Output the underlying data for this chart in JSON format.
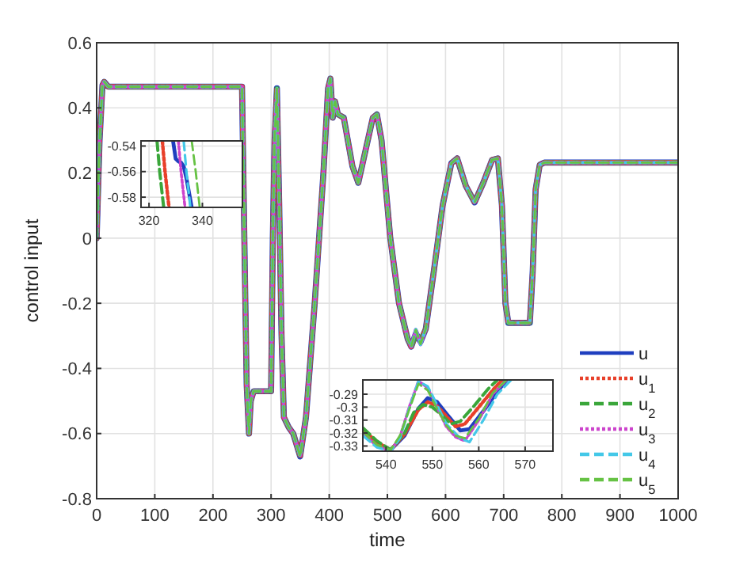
{
  "chart_data": [
    {
      "type": "line",
      "xlabel": "time",
      "ylabel": "control input",
      "xlim": [
        0,
        1000
      ],
      "ylim": [
        -0.8,
        0.6
      ],
      "xticks": [
        0,
        100,
        200,
        300,
        400,
        500,
        600,
        700,
        800,
        900,
        1000
      ],
      "yticks": [
        -0.8,
        -0.6,
        -0.4,
        -0.2,
        0,
        0.2,
        0.4,
        0.6
      ],
      "grid": true,
      "legend": "bottom right",
      "x": [
        0,
        5,
        10,
        13,
        20,
        250,
        254,
        258,
        262,
        265,
        270,
        300,
        303,
        306,
        310,
        314,
        318,
        322,
        330,
        338,
        350,
        360,
        375,
        390,
        398,
        402,
        406,
        410,
        415,
        425,
        440,
        450,
        460,
        475,
        482,
        490,
        505,
        520,
        535,
        541,
        549,
        557,
        566,
        580,
        595,
        610,
        620,
        635,
        650,
        665,
        680,
        690,
        697,
        703,
        708,
        745,
        750,
        755,
        762,
        770,
        1000
      ],
      "series": [
        {
          "name": "u",
          "color": "#1f3fbf",
          "line_style": "solid",
          "values": [
            0,
            0.3,
            0.47,
            0.48,
            0.465,
            0.465,
            0,
            -0.45,
            -0.6,
            -0.5,
            -0.47,
            -0.47,
            0,
            0.3,
            0.46,
            0.1,
            -0.3,
            -0.55,
            -0.58,
            -0.6,
            -0.67,
            -0.55,
            -0.2,
            0.2,
            0.46,
            0.49,
            0.37,
            0.42,
            0.38,
            0.37,
            0.22,
            0.17,
            0.25,
            0.37,
            0.38,
            0.3,
            0,
            -0.2,
            -0.31,
            -0.333,
            -0.293,
            -0.318,
            -0.279,
            -0.1,
            0.1,
            0.23,
            0.245,
            0.16,
            0.11,
            0.17,
            0.24,
            0.245,
            0.1,
            -0.2,
            -0.26,
            -0.26,
            -0.1,
            0.15,
            0.225,
            0.232,
            0.232
          ]
        },
        {
          "name": "u$_{1}$",
          "color": "#e8402a",
          "line_style": "dotted",
          "values": [
            0,
            0.3,
            0.47,
            0.48,
            0.465,
            0.465,
            0,
            -0.45,
            -0.6,
            -0.5,
            -0.47,
            -0.47,
            0,
            0.3,
            0.46,
            0.1,
            -0.3,
            -0.55,
            -0.58,
            -0.6,
            -0.67,
            -0.55,
            -0.2,
            0.2,
            0.46,
            0.49,
            0.37,
            0.42,
            0.38,
            0.37,
            0.22,
            0.17,
            0.25,
            0.37,
            0.38,
            0.3,
            0,
            -0.2,
            -0.31,
            -0.333,
            -0.296,
            -0.315,
            -0.279,
            -0.1,
            0.1,
            0.23,
            0.245,
            0.16,
            0.11,
            0.17,
            0.24,
            0.245,
            0.1,
            -0.2,
            -0.26,
            -0.26,
            -0.1,
            0.15,
            0.225,
            0.232,
            0.232
          ]
        },
        {
          "name": "u$_{2}$",
          "color": "#3aa63a",
          "line_style": "dashed",
          "values": [
            0,
            0.3,
            0.47,
            0.48,
            0.465,
            0.465,
            0,
            -0.45,
            -0.6,
            -0.5,
            -0.47,
            -0.47,
            0,
            0.3,
            0.46,
            0.1,
            -0.3,
            -0.55,
            -0.58,
            -0.6,
            -0.67,
            -0.55,
            -0.2,
            0.2,
            0.46,
            0.49,
            0.37,
            0.42,
            0.38,
            0.37,
            0.22,
            0.17,
            0.25,
            0.37,
            0.38,
            0.3,
            0,
            -0.2,
            -0.31,
            -0.333,
            -0.298,
            -0.313,
            -0.279,
            -0.1,
            0.1,
            0.23,
            0.245,
            0.16,
            0.11,
            0.17,
            0.24,
            0.245,
            0.1,
            -0.2,
            -0.26,
            -0.26,
            -0.1,
            0.15,
            0.225,
            0.232,
            0.232
          ]
        },
        {
          "name": "u$_{3}$",
          "color": "#cc44cc",
          "line_style": "dotted",
          "values": [
            0,
            0.3,
            0.47,
            0.48,
            0.465,
            0.465,
            0,
            -0.45,
            -0.6,
            -0.5,
            -0.47,
            -0.47,
            0,
            0.3,
            0.46,
            0.1,
            -0.3,
            -0.55,
            -0.58,
            -0.6,
            -0.67,
            -0.55,
            -0.2,
            0.2,
            0.46,
            0.49,
            0.37,
            0.42,
            0.38,
            0.37,
            0.22,
            0.17,
            0.25,
            0.37,
            0.38,
            0.3,
            0,
            -0.2,
            -0.31,
            -0.333,
            -0.28,
            -0.326,
            -0.279,
            -0.1,
            0.1,
            0.23,
            0.245,
            0.16,
            0.11,
            0.17,
            0.24,
            0.245,
            0.1,
            -0.2,
            -0.26,
            -0.26,
            -0.1,
            0.15,
            0.225,
            0.232,
            0.232
          ]
        },
        {
          "name": "u$_{4}$",
          "color": "#44c8e8",
          "line_style": "dashed",
          "values": [
            0,
            0.3,
            0.47,
            0.48,
            0.465,
            0.465,
            0,
            -0.45,
            -0.6,
            -0.5,
            -0.47,
            -0.47,
            0,
            0.3,
            0.46,
            0.1,
            -0.3,
            -0.55,
            -0.58,
            -0.6,
            -0.67,
            -0.55,
            -0.2,
            0.2,
            0.46,
            0.49,
            0.37,
            0.42,
            0.38,
            0.37,
            0.22,
            0.17,
            0.25,
            0.37,
            0.38,
            0.3,
            0,
            -0.2,
            -0.31,
            -0.333,
            -0.28,
            -0.327,
            -0.279,
            -0.1,
            0.1,
            0.23,
            0.245,
            0.16,
            0.11,
            0.17,
            0.24,
            0.245,
            0.1,
            -0.2,
            -0.26,
            -0.26,
            -0.1,
            0.15,
            0.225,
            0.232,
            0.232
          ]
        },
        {
          "name": "u$_{5}$",
          "color": "#66c244",
          "line_style": "dashed",
          "values": [
            0,
            0.3,
            0.47,
            0.48,
            0.465,
            0.465,
            0,
            -0.45,
            -0.6,
            -0.5,
            -0.47,
            -0.47,
            0,
            0.3,
            0.46,
            0.1,
            -0.3,
            -0.55,
            -0.58,
            -0.6,
            -0.67,
            -0.55,
            -0.2,
            0.2,
            0.46,
            0.49,
            0.37,
            0.42,
            0.38,
            0.37,
            0.22,
            0.17,
            0.25,
            0.37,
            0.38,
            0.3,
            0,
            -0.2,
            -0.31,
            -0.333,
            -0.282,
            -0.325,
            -0.279,
            -0.1,
            0.1,
            0.23,
            0.245,
            0.16,
            0.11,
            0.17,
            0.24,
            0.245,
            0.1,
            -0.2,
            -0.26,
            -0.26,
            -0.1,
            0.15,
            0.225,
            0.232,
            0.232
          ]
        }
      ]
    },
    {
      "type": "line",
      "xlim": [
        317,
        355
      ],
      "ylim": [
        -0.588,
        -0.536
      ],
      "xticks": [
        320,
        340
      ],
      "yticks": [
        -0.58,
        -0.56,
        -0.54
      ],
      "grid": true,
      "series": [
        {
          "color": "#1f3fbf",
          "line_style": "solid",
          "x": [
            329,
            330,
            331,
            332,
            333,
            334,
            336
          ],
          "values": [
            -0.536,
            -0.55,
            -0.552,
            -0.553,
            -0.556,
            -0.565,
            -0.588
          ]
        },
        {
          "color": "#e8402a",
          "line_style": "dotted",
          "x": [
            325,
            326,
            327.5
          ],
          "values": [
            -0.536,
            -0.56,
            -0.588
          ]
        },
        {
          "color": "#3aa63a",
          "line_style": "dashed",
          "x": [
            323,
            324,
            325.5
          ],
          "values": [
            -0.536,
            -0.56,
            -0.588
          ]
        },
        {
          "color": "#cc44cc",
          "line_style": "dotted",
          "x": [
            331,
            332,
            333.5
          ],
          "values": [
            -0.536,
            -0.56,
            -0.588
          ]
        },
        {
          "color": "#44c8e8",
          "line_style": "dashed",
          "x": [
            333,
            334,
            335.5
          ],
          "values": [
            -0.536,
            -0.56,
            -0.588
          ]
        },
        {
          "color": "#66c244",
          "line_style": "dashed",
          "x": [
            336,
            337.5,
            339
          ],
          "values": [
            -0.536,
            -0.56,
            -0.588
          ]
        }
      ]
    },
    {
      "type": "line",
      "xlim": [
        535,
        576
      ],
      "ylim": [
        -0.334,
        -0.279
      ],
      "xticks": [
        540,
        550,
        560,
        570
      ],
      "yticks": [
        -0.33,
        -0.32,
        -0.31,
        -0.3,
        -0.29
      ],
      "grid": true,
      "series": [
        {
          "color": "#1f3fbf",
          "line_style": "solid",
          "x": [
            535,
            538,
            541,
            544,
            547,
            549,
            551,
            553,
            556,
            558,
            561,
            564,
            566
          ],
          "values": [
            -0.318,
            -0.328,
            -0.333,
            -0.322,
            -0.301,
            -0.293,
            -0.296,
            -0.305,
            -0.318,
            -0.317,
            -0.303,
            -0.288,
            -0.279
          ]
        },
        {
          "color": "#e8402a",
          "line_style": "dotted",
          "x": [
            535,
            538,
            541,
            544,
            547,
            549,
            551,
            553,
            555,
            557,
            560,
            563,
            565
          ],
          "values": [
            -0.317,
            -0.327,
            -0.333,
            -0.321,
            -0.302,
            -0.296,
            -0.299,
            -0.307,
            -0.315,
            -0.313,
            -0.3,
            -0.287,
            -0.279
          ]
        },
        {
          "color": "#3aa63a",
          "line_style": "dashed",
          "x": [
            535,
            538,
            541,
            544,
            546,
            548,
            550,
            552,
            554,
            556,
            559,
            562,
            564
          ],
          "values": [
            -0.316,
            -0.326,
            -0.333,
            -0.32,
            -0.304,
            -0.298,
            -0.3,
            -0.306,
            -0.313,
            -0.311,
            -0.299,
            -0.286,
            -0.279
          ]
        },
        {
          "color": "#cc44cc",
          "line_style": "dotted",
          "x": [
            535,
            538,
            541,
            543,
            545,
            547,
            549,
            551,
            553,
            555,
            557,
            560,
            563,
            566
          ],
          "values": [
            -0.32,
            -0.33,
            -0.334,
            -0.323,
            -0.3,
            -0.28,
            -0.285,
            -0.3,
            -0.315,
            -0.323,
            -0.326,
            -0.31,
            -0.29,
            -0.279
          ]
        },
        {
          "color": "#44c8e8",
          "line_style": "dashed",
          "x": [
            535,
            538,
            541,
            543,
            545,
            547,
            549,
            551,
            553,
            556,
            558,
            561,
            564,
            567
          ],
          "values": [
            -0.322,
            -0.331,
            -0.334,
            -0.324,
            -0.301,
            -0.28,
            -0.284,
            -0.298,
            -0.313,
            -0.324,
            -0.327,
            -0.31,
            -0.29,
            -0.279
          ]
        },
        {
          "color": "#66c244",
          "line_style": "dashed",
          "x": [
            535,
            538,
            541,
            543,
            545,
            547,
            549,
            551,
            553,
            555,
            557,
            560,
            563,
            566
          ],
          "values": [
            -0.319,
            -0.329,
            -0.333,
            -0.322,
            -0.302,
            -0.282,
            -0.287,
            -0.301,
            -0.314,
            -0.322,
            -0.324,
            -0.309,
            -0.289,
            -0.279
          ]
        }
      ]
    }
  ]
}
